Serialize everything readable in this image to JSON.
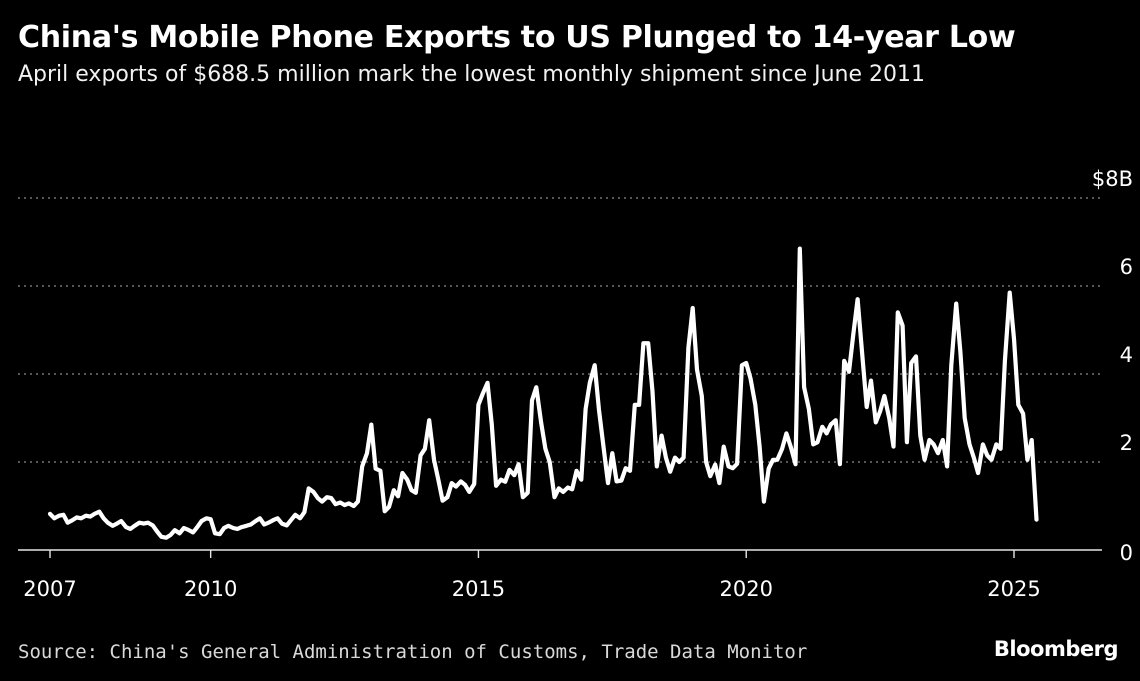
{
  "title": "China's Mobile Phone Exports to US Plunged to 14-year Low",
  "subtitle": "April exports of $688.5 million mark the lowest monthly shipment since June 2011",
  "source": "Source: China's General Administration of Customs, Trade Data Monitor",
  "brand": "Bloomberg",
  "colors": {
    "background": "#000000",
    "line": "#ffffff",
    "grid": "#8a8a8a",
    "text": "#ffffff"
  },
  "chart_data": {
    "type": "line",
    "xlabel": "",
    "ylabel": "",
    "unit": "billion USD",
    "xlim": [
      2006.5,
      2026.5
    ],
    "ylim": [
      0,
      8
    ],
    "grid": true,
    "x_ticks": [
      {
        "value": 2007,
        "label": "2007"
      },
      {
        "value": 2010,
        "label": "2010"
      },
      {
        "value": 2015,
        "label": "2015"
      },
      {
        "value": 2020,
        "label": "2020"
      },
      {
        "value": 2025,
        "label": "2025"
      }
    ],
    "y_ticks": [
      {
        "value": 0,
        "label": "0"
      },
      {
        "value": 2,
        "label": "2"
      },
      {
        "value": 4,
        "label": "4"
      },
      {
        "value": 6,
        "label": "6"
      },
      {
        "value": 8,
        "label": "$8B"
      }
    ],
    "series": [
      {
        "points": [
          [
            2007.0,
            0.82
          ],
          [
            2007.08,
            0.72
          ],
          [
            2007.17,
            0.78
          ],
          [
            2007.25,
            0.8
          ],
          [
            2007.33,
            0.62
          ],
          [
            2007.42,
            0.68
          ],
          [
            2007.5,
            0.74
          ],
          [
            2007.58,
            0.72
          ],
          [
            2007.67,
            0.78
          ],
          [
            2007.75,
            0.76
          ],
          [
            2007.83,
            0.82
          ],
          [
            2007.92,
            0.87
          ],
          [
            2008.0,
            0.72
          ],
          [
            2008.08,
            0.62
          ],
          [
            2008.17,
            0.55
          ],
          [
            2008.25,
            0.6
          ],
          [
            2008.33,
            0.66
          ],
          [
            2008.42,
            0.52
          ],
          [
            2008.5,
            0.48
          ],
          [
            2008.58,
            0.55
          ],
          [
            2008.67,
            0.62
          ],
          [
            2008.75,
            0.6
          ],
          [
            2008.83,
            0.62
          ],
          [
            2008.92,
            0.56
          ],
          [
            2009.0,
            0.42
          ],
          [
            2009.08,
            0.3
          ],
          [
            2009.17,
            0.28
          ],
          [
            2009.25,
            0.34
          ],
          [
            2009.33,
            0.45
          ],
          [
            2009.42,
            0.38
          ],
          [
            2009.5,
            0.5
          ],
          [
            2009.58,
            0.46
          ],
          [
            2009.67,
            0.4
          ],
          [
            2009.75,
            0.52
          ],
          [
            2009.83,
            0.66
          ],
          [
            2009.92,
            0.72
          ],
          [
            2010.0,
            0.7
          ],
          [
            2010.08,
            0.38
          ],
          [
            2010.17,
            0.36
          ],
          [
            2010.25,
            0.5
          ],
          [
            2010.33,
            0.55
          ],
          [
            2010.42,
            0.5
          ],
          [
            2010.5,
            0.48
          ],
          [
            2010.58,
            0.52
          ],
          [
            2010.67,
            0.55
          ],
          [
            2010.75,
            0.58
          ],
          [
            2010.83,
            0.65
          ],
          [
            2010.92,
            0.72
          ],
          [
            2011.0,
            0.58
          ],
          [
            2011.08,
            0.62
          ],
          [
            2011.17,
            0.68
          ],
          [
            2011.25,
            0.72
          ],
          [
            2011.33,
            0.6
          ],
          [
            2011.42,
            0.56
          ],
          [
            2011.5,
            0.68
          ],
          [
            2011.58,
            0.8
          ],
          [
            2011.67,
            0.72
          ],
          [
            2011.75,
            0.86
          ],
          [
            2011.83,
            1.4
          ],
          [
            2011.92,
            1.32
          ],
          [
            2012.0,
            1.18
          ],
          [
            2012.08,
            1.1
          ],
          [
            2012.17,
            1.2
          ],
          [
            2012.25,
            1.18
          ],
          [
            2012.33,
            1.04
          ],
          [
            2012.42,
            1.08
          ],
          [
            2012.5,
            1.02
          ],
          [
            2012.58,
            1.06
          ],
          [
            2012.67,
            1.0
          ],
          [
            2012.75,
            1.1
          ],
          [
            2012.83,
            1.9
          ],
          [
            2012.92,
            2.2
          ],
          [
            2013.0,
            2.85
          ],
          [
            2013.08,
            1.85
          ],
          [
            2013.17,
            1.8
          ],
          [
            2013.25,
            0.88
          ],
          [
            2013.33,
            0.98
          ],
          [
            2013.42,
            1.36
          ],
          [
            2013.5,
            1.22
          ],
          [
            2013.58,
            1.75
          ],
          [
            2013.67,
            1.6
          ],
          [
            2013.75,
            1.36
          ],
          [
            2013.83,
            1.3
          ],
          [
            2013.92,
            2.15
          ],
          [
            2014.0,
            2.3
          ],
          [
            2014.08,
            2.95
          ],
          [
            2014.17,
            2.05
          ],
          [
            2014.25,
            1.6
          ],
          [
            2014.33,
            1.12
          ],
          [
            2014.42,
            1.2
          ],
          [
            2014.5,
            1.52
          ],
          [
            2014.58,
            1.44
          ],
          [
            2014.67,
            1.56
          ],
          [
            2014.75,
            1.48
          ],
          [
            2014.83,
            1.32
          ],
          [
            2014.92,
            1.5
          ],
          [
            2015.0,
            3.3
          ],
          [
            2015.08,
            3.55
          ],
          [
            2015.17,
            3.8
          ],
          [
            2015.25,
            2.85
          ],
          [
            2015.33,
            1.46
          ],
          [
            2015.42,
            1.6
          ],
          [
            2015.5,
            1.55
          ],
          [
            2015.58,
            1.82
          ],
          [
            2015.67,
            1.7
          ],
          [
            2015.75,
            1.95
          ],
          [
            2015.83,
            1.2
          ],
          [
            2015.92,
            1.3
          ],
          [
            2016.0,
            3.4
          ],
          [
            2016.08,
            3.7
          ],
          [
            2016.17,
            2.9
          ],
          [
            2016.25,
            2.3
          ],
          [
            2016.33,
            2.0
          ],
          [
            2016.42,
            1.2
          ],
          [
            2016.5,
            1.4
          ],
          [
            2016.58,
            1.32
          ],
          [
            2016.67,
            1.42
          ],
          [
            2016.75,
            1.38
          ],
          [
            2016.83,
            1.8
          ],
          [
            2016.92,
            1.6
          ],
          [
            2017.0,
            3.2
          ],
          [
            2017.08,
            3.8
          ],
          [
            2017.17,
            4.2
          ],
          [
            2017.25,
            3.2
          ],
          [
            2017.33,
            2.4
          ],
          [
            2017.42,
            1.52
          ],
          [
            2017.5,
            2.2
          ],
          [
            2017.58,
            1.56
          ],
          [
            2017.67,
            1.58
          ],
          [
            2017.75,
            1.86
          ],
          [
            2017.83,
            1.8
          ],
          [
            2017.92,
            3.3
          ],
          [
            2018.0,
            3.3
          ],
          [
            2018.08,
            4.7
          ],
          [
            2018.17,
            4.7
          ],
          [
            2018.25,
            3.6
          ],
          [
            2018.33,
            1.9
          ],
          [
            2018.42,
            2.6
          ],
          [
            2018.5,
            2.1
          ],
          [
            2018.58,
            1.78
          ],
          [
            2018.67,
            2.1
          ],
          [
            2018.75,
            2.0
          ],
          [
            2018.83,
            2.1
          ],
          [
            2018.92,
            4.6
          ],
          [
            2019.0,
            5.5
          ],
          [
            2019.08,
            4.1
          ],
          [
            2019.17,
            3.5
          ],
          [
            2019.25,
            2.0
          ],
          [
            2019.33,
            1.68
          ],
          [
            2019.42,
            1.94
          ],
          [
            2019.5,
            1.52
          ],
          [
            2019.58,
            2.35
          ],
          [
            2019.67,
            1.9
          ],
          [
            2019.75,
            1.86
          ],
          [
            2019.83,
            1.96
          ],
          [
            2019.92,
            4.2
          ],
          [
            2020.0,
            4.25
          ],
          [
            2020.08,
            3.9
          ],
          [
            2020.17,
            3.3
          ],
          [
            2020.25,
            2.35
          ],
          [
            2020.33,
            1.1
          ],
          [
            2020.42,
            1.85
          ],
          [
            2020.5,
            2.05
          ],
          [
            2020.58,
            2.05
          ],
          [
            2020.67,
            2.3
          ],
          [
            2020.75,
            2.65
          ],
          [
            2020.83,
            2.35
          ],
          [
            2020.92,
            1.95
          ],
          [
            2021.0,
            6.85
          ],
          [
            2021.08,
            3.7
          ],
          [
            2021.17,
            3.2
          ],
          [
            2021.25,
            2.4
          ],
          [
            2021.33,
            2.45
          ],
          [
            2021.42,
            2.8
          ],
          [
            2021.5,
            2.65
          ],
          [
            2021.58,
            2.85
          ],
          [
            2021.67,
            2.95
          ],
          [
            2021.75,
            1.95
          ],
          [
            2021.83,
            4.3
          ],
          [
            2021.92,
            4.05
          ],
          [
            2022.0,
            4.9
          ],
          [
            2022.08,
            5.7
          ],
          [
            2022.17,
            4.4
          ],
          [
            2022.25,
            3.25
          ],
          [
            2022.33,
            3.85
          ],
          [
            2022.42,
            2.9
          ],
          [
            2022.5,
            3.15
          ],
          [
            2022.58,
            3.5
          ],
          [
            2022.67,
            3.0
          ],
          [
            2022.75,
            2.35
          ],
          [
            2022.83,
            5.4
          ],
          [
            2022.92,
            5.1
          ],
          [
            2023.0,
            2.45
          ],
          [
            2023.08,
            4.25
          ],
          [
            2023.17,
            4.4
          ],
          [
            2023.25,
            2.6
          ],
          [
            2023.33,
            2.05
          ],
          [
            2023.42,
            2.5
          ],
          [
            2023.5,
            2.4
          ],
          [
            2023.58,
            2.2
          ],
          [
            2023.67,
            2.5
          ],
          [
            2023.75,
            1.9
          ],
          [
            2023.83,
            4.2
          ],
          [
            2023.92,
            5.6
          ],
          [
            2024.0,
            4.5
          ],
          [
            2024.08,
            3.0
          ],
          [
            2024.17,
            2.4
          ],
          [
            2024.25,
            2.1
          ],
          [
            2024.33,
            1.75
          ],
          [
            2024.42,
            2.4
          ],
          [
            2024.5,
            2.15
          ],
          [
            2024.58,
            2.05
          ],
          [
            2024.67,
            2.4
          ],
          [
            2024.75,
            2.3
          ],
          [
            2024.83,
            4.3
          ],
          [
            2024.92,
            5.85
          ],
          [
            2025.0,
            4.8
          ],
          [
            2025.08,
            3.3
          ],
          [
            2025.17,
            3.1
          ],
          [
            2025.25,
            2.05
          ],
          [
            2025.33,
            2.5
          ],
          [
            2025.42,
            0.69
          ]
        ]
      }
    ],
    "annotations": []
  }
}
